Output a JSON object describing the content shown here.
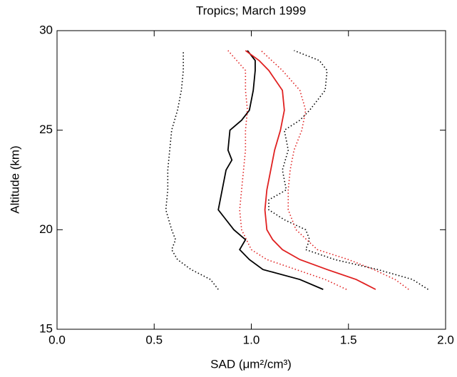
{
  "chart_data": {
    "type": "line",
    "title": "Tropics; March 1999",
    "xlabel": "SAD (μm²/cm³)",
    "ylabel": "Altitude (km)",
    "xlim": [
      0,
      2
    ],
    "ylim": [
      15,
      30
    ],
    "xticks": [
      {
        "value": 0,
        "label": "0.0"
      },
      0.5,
      {
        "value": 1,
        "label": "1.0"
      },
      1.5,
      {
        "value": 2,
        "label": "2.0"
      }
    ],
    "yticks": [
      15,
      20,
      25,
      30
    ],
    "series": [
      {
        "color": "#000000",
        "dash": "dotted",
        "x": [
          0.83,
          0.79,
          0.69,
          0.62,
          0.59,
          0.61,
          0.59,
          0.56,
          0.57,
          0.57,
          0.58,
          0.59,
          0.62,
          0.64,
          0.65,
          0.65
        ],
        "values": [
          17,
          17.5,
          18,
          18.5,
          19,
          19.5,
          20,
          21,
          22,
          23,
          24,
          25,
          26,
          27,
          28,
          29
        ]
      },
      {
        "color": "#000000",
        "dash": "solid",
        "x": [
          1.37,
          1.25,
          1.06,
          0.99,
          0.94,
          0.97,
          0.91,
          0.87,
          0.83,
          0.84,
          0.85,
          0.87,
          0.9,
          0.88,
          0.89,
          0.95,
          0.99,
          1.01,
          1.02,
          1.02,
          0.98
        ],
        "values": [
          17,
          17.5,
          18,
          18.5,
          19,
          19.5,
          20,
          20.5,
          21,
          21.5,
          22,
          23,
          23.5,
          24,
          25,
          25.5,
          26,
          27,
          28,
          28.5,
          29
        ]
      },
      {
        "color": "#000000",
        "dash": "dotted",
        "x": [
          1.91,
          1.83,
          1.65,
          1.43,
          1.28,
          1.3,
          1.28,
          1.17,
          1.09,
          1.09,
          1.18,
          1.16,
          1.19,
          1.17,
          1.25,
          1.3,
          1.38,
          1.39,
          1.35,
          1.22
        ],
        "values": [
          17,
          17.5,
          18,
          18.5,
          19,
          19.5,
          20,
          20.5,
          21,
          21.5,
          22,
          23,
          24,
          25,
          25.5,
          26,
          27,
          28,
          28.5,
          29
        ]
      },
      {
        "color": "#e02020",
        "dash": "dotted",
        "x": [
          1.49,
          1.38,
          1.23,
          1.08,
          1.0,
          0.95,
          0.94,
          0.95,
          0.96,
          0.97,
          0.97,
          0.98,
          0.97,
          0.97,
          0.88
        ],
        "values": [
          17,
          17.5,
          18,
          18.5,
          19,
          20,
          21,
          22,
          23,
          24,
          25,
          26,
          27,
          28,
          29
        ]
      },
      {
        "color": "#e02020",
        "dash": "solid",
        "x": [
          1.64,
          1.54,
          1.39,
          1.25,
          1.16,
          1.11,
          1.08,
          1.07,
          1.08,
          1.1,
          1.12,
          1.15,
          1.17,
          1.16,
          1.09,
          1.04,
          0.97
        ],
        "values": [
          17,
          17.5,
          18,
          18.5,
          19,
          19.5,
          20,
          21,
          22,
          23,
          24,
          25,
          26,
          27,
          28,
          28.5,
          29
        ]
      },
      {
        "color": "#e02020",
        "dash": "dotted",
        "x": [
          1.81,
          1.74,
          1.63,
          1.5,
          1.34,
          1.23,
          1.19,
          1.19,
          1.2,
          1.22,
          1.26,
          1.28,
          1.25,
          1.16,
          1.05
        ],
        "values": [
          17,
          17.5,
          18,
          18.5,
          19,
          20,
          21,
          22,
          23,
          24,
          25,
          26,
          27,
          28,
          29
        ]
      }
    ]
  }
}
